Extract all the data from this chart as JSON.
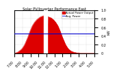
{
  "title": "Solar PV/Inverter Performance East",
  "legend_actual": "Actual Power Output",
  "legend_avg": "Avg. Power",
  "bg_color": "#ffffff",
  "plot_bg": "#ffffff",
  "grid_color": "#ffffff",
  "fill_color": "#dd0000",
  "line_color": "#dd0000",
  "avg_line_color": "#0000cc",
  "avg_value": 0.45,
  "xlim": [
    0,
    36
  ],
  "ylim": [
    0,
    1.0
  ],
  "ylabel": "kW",
  "time_labels": [
    "7:00",
    "8:00",
    "9:00",
    "10:00",
    "11:00",
    "12:00",
    "1:00",
    "2:00",
    "3:00",
    "4:00",
    "5:00"
  ],
  "time_positions": [
    0,
    3.6,
    7.2,
    10.8,
    14.4,
    18.0,
    21.6,
    25.2,
    28.8,
    32.4,
    36.0
  ],
  "y_ticks": [
    0,
    0.2,
    0.4,
    0.6,
    0.8,
    1.0
  ],
  "x_data": [
    0,
    0.5,
    1,
    1.5,
    2,
    2.5,
    3,
    3.5,
    4,
    4.5,
    5,
    5.5,
    6,
    6.5,
    7,
    7.5,
    8,
    8.5,
    9,
    9.5,
    10,
    10.5,
    11,
    11.5,
    12,
    12.5,
    13,
    13.5,
    14,
    14.5,
    15,
    15.5,
    16,
    16.5,
    17,
    17.5,
    18,
    18.5,
    19,
    19.5,
    20,
    20.5,
    21,
    21.5,
    22,
    22.5,
    23,
    23.5,
    24,
    24.5,
    25,
    25.5,
    26,
    26.5,
    27,
    27.5,
    28,
    28.5,
    29,
    29.5,
    30,
    30.5,
    31,
    31.5,
    32,
    32.5,
    33,
    33.5,
    34,
    34.5,
    35,
    35.5,
    36
  ],
  "y_data": [
    0,
    0.01,
    0.02,
    0.03,
    0.05,
    0.07,
    0.09,
    0.12,
    0.16,
    0.2,
    0.26,
    0.32,
    0.38,
    0.45,
    0.52,
    0.58,
    0.64,
    0.68,
    0.72,
    0.75,
    0.78,
    0.8,
    0.82,
    0.84,
    0.85,
    0.86,
    0.87,
    0.86,
    0.2,
    0.02,
    0.85,
    0.84,
    0.83,
    0.82,
    0.8,
    0.78,
    0.75,
    0.72,
    0.68,
    0.64,
    0.58,
    0.52,
    0.45,
    0.38,
    0.32,
    0.26,
    0.2,
    0.16,
    0.12,
    0.09,
    0.07,
    0.05,
    0.04,
    0.03,
    0.02,
    0.02,
    0.01,
    0.01,
    0.01,
    0.0,
    0,
    0,
    0,
    0,
    0,
    0,
    0,
    0,
    0,
    0,
    0,
    0,
    0
  ]
}
